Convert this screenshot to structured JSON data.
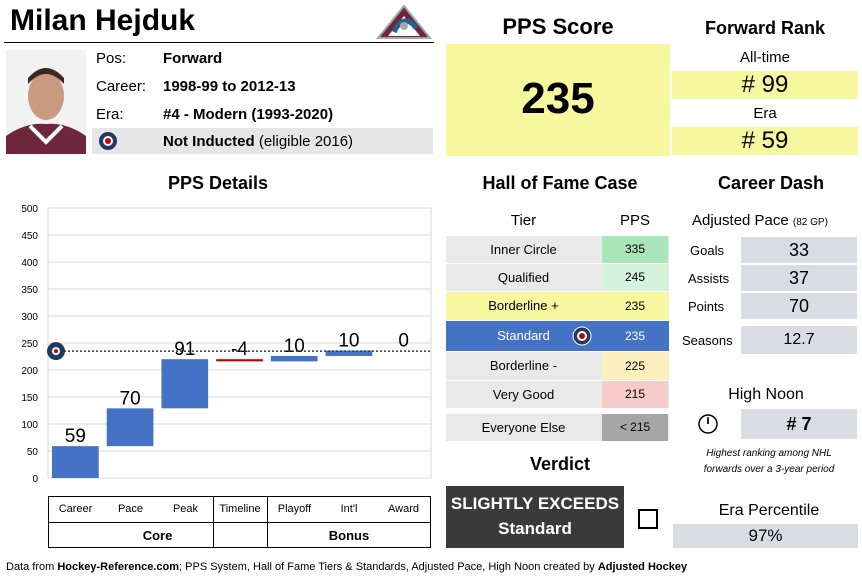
{
  "player": {
    "name": "Milan Hejduk",
    "pos_label": "Pos:",
    "pos": "Forward",
    "career_label": "Career:",
    "career": "1998-99 to 2012-13",
    "era_label": "Era:",
    "era": "#4 - Modern (1993-2020)",
    "hof_status": "Not Inducted",
    "hof_note": "(eligible 2016)"
  },
  "pps": {
    "title": "PPS Score",
    "score": "235"
  },
  "rank": {
    "title": "Forward Rank",
    "alltime_label": "All-time",
    "alltime": "# 99",
    "era_label": "Era",
    "era": "# 59"
  },
  "details": {
    "title": "PPS Details",
    "categories_core": [
      "Career",
      "Pace",
      "Peak",
      "Timeline"
    ],
    "categories_bonus": [
      "Playoff",
      "Int'l",
      "Award"
    ],
    "core_label": "Core",
    "bonus_label": "Bonus"
  },
  "chart_data": {
    "type": "waterfall",
    "categories": [
      "Career",
      "Pace",
      "Peak",
      "Timeline",
      "Playoff",
      "Int'l",
      "Award"
    ],
    "values": [
      59,
      70,
      91,
      -4,
      10,
      10,
      0
    ],
    "ylim": [
      0,
      500
    ],
    "yticks": [
      0,
      50,
      100,
      150,
      200,
      250,
      300,
      350,
      400,
      450,
      500
    ],
    "reference_line": 235,
    "colors": {
      "bar": "#4472c4",
      "negative": "#c00000"
    }
  },
  "hof": {
    "title": "Hall of Fame Case",
    "col_tier": "Tier",
    "col_pps": "PPS",
    "tiers": [
      {
        "tier": "Inner Circle",
        "pps": "335"
      },
      {
        "tier": "Qualified",
        "pps": "245"
      },
      {
        "tier": "Borderline +",
        "pps": "235"
      },
      {
        "tier": "Standard",
        "pps": "235"
      },
      {
        "tier": "Borderline -",
        "pps": "225"
      },
      {
        "tier": "Very Good",
        "pps": "215"
      },
      {
        "tier": "Everyone Else",
        "pps": "< 215"
      }
    ]
  },
  "verdict": {
    "title": "Verdict",
    "line1": "SLIGHTLY EXCEEDS",
    "line2": "Standard"
  },
  "dash": {
    "title": "Career Dash",
    "pace_label": "Adjusted Pace",
    "pace_sub": "(82 GP)",
    "goals_label": "Goals",
    "goals": "33",
    "assists_label": "Assists",
    "assists": "37",
    "points_label": "Points",
    "points": "70",
    "seasons_label": "Seasons",
    "seasons": "12.7",
    "noon_title": "High Noon",
    "noon_val": "# 7",
    "noon_note1": "Highest ranking among NHL",
    "noon_note2": "forwards over a 3-year period",
    "pct_title": "Era Percentile",
    "pct_val": "97%"
  },
  "footer": {
    "t1": "Data from ",
    "b1": "Hockey-Reference.com",
    "t2": "; PPS System, Hall of Fame Tiers & Standards, Adjusted Pace, High Noon created by ",
    "b2": "Adjusted Hockey"
  }
}
